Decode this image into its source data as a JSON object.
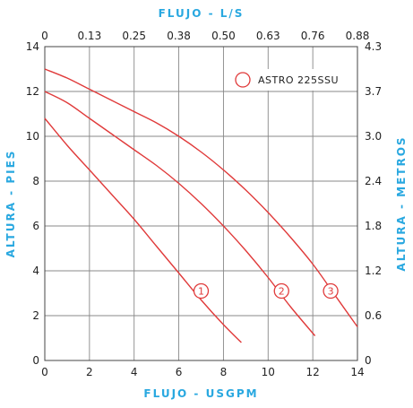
{
  "chart_data": {
    "type": "line",
    "titles": {
      "top": "FLUJO - L/S",
      "bottom": "FLUJO - USGPM",
      "left": "ALTURA - PIES",
      "right": "ALTURA - METROS"
    },
    "x_bottom": {
      "min": 0,
      "max": 14,
      "ticks": [
        "0",
        "2",
        "4",
        "6",
        "8",
        "10",
        "12",
        "14"
      ],
      "unit": "USGPM"
    },
    "x_top": {
      "ticks": [
        "0",
        "0.13",
        "0.25",
        "0.38",
        "0.50",
        "0.63",
        "0.76",
        "0.88"
      ],
      "unit": "L/S"
    },
    "y_left": {
      "min": 0,
      "max": 14,
      "ticks": [
        "0",
        "2",
        "4",
        "6",
        "8",
        "10",
        "12",
        "14"
      ],
      "unit": "PIES"
    },
    "y_right": {
      "ticks": [
        "0",
        "0.6",
        "1.2",
        "1.8",
        "2.4",
        "3.0",
        "3.7",
        "4.3"
      ],
      "unit": "METROS"
    },
    "grid": true,
    "legend": {
      "label": "ASTRO 225SSU",
      "position": "top-right"
    },
    "color": "#e03a3a",
    "series": [
      {
        "marker": "1",
        "label_at": [
          7.0,
          3.1
        ],
        "x": [
          0,
          1,
          2,
          3,
          4,
          5,
          6,
          7,
          8,
          8.8
        ],
        "y": [
          10.8,
          9.6,
          8.5,
          7.4,
          6.3,
          5.1,
          3.9,
          2.7,
          1.6,
          0.8
        ]
      },
      {
        "marker": "2",
        "label_at": [
          10.6,
          3.1
        ],
        "x": [
          0,
          1,
          2,
          3,
          4,
          5,
          6,
          7,
          8,
          9,
          10,
          11,
          12.1
        ],
        "y": [
          12.0,
          11.5,
          10.8,
          10.1,
          9.4,
          8.7,
          7.9,
          7.0,
          6.0,
          4.9,
          3.7,
          2.4,
          1.1
        ]
      },
      {
        "marker": "3",
        "label_at": [
          12.8,
          3.1
        ],
        "x": [
          0,
          1,
          2,
          3,
          4,
          5,
          6,
          7,
          8,
          9,
          10,
          11,
          12,
          13,
          14
        ],
        "y": [
          13.0,
          12.6,
          12.1,
          11.6,
          11.1,
          10.6,
          10.0,
          9.3,
          8.5,
          7.6,
          6.6,
          5.5,
          4.3,
          2.9,
          1.5
        ]
      }
    ]
  }
}
